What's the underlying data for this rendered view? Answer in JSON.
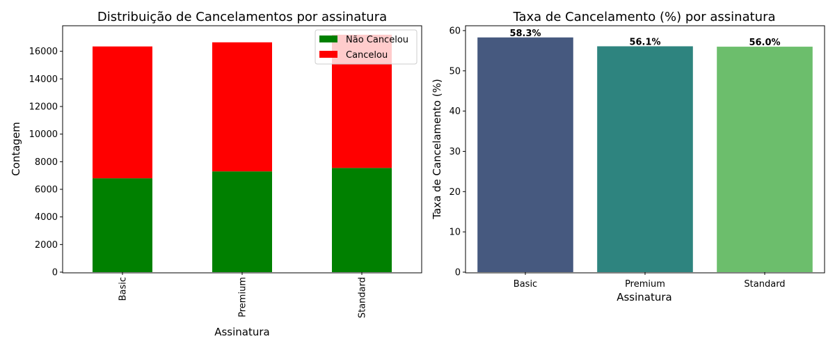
{
  "chart_data": [
    {
      "type": "bar",
      "stacked": true,
      "title": "Distribuição de Cancelamentos por assinatura",
      "xlabel": "Assinatura",
      "ylabel": "Contagem",
      "categories": [
        "Basic",
        "Premium",
        "Standard"
      ],
      "x_tick_rotation": "vertical",
      "yticks": [
        0,
        2000,
        4000,
        6000,
        8000,
        10000,
        12000,
        14000,
        16000
      ],
      "ylim": [
        0,
        17850
      ],
      "series": [
        {
          "name": "Não Cancelou",
          "values": [
            6800,
            7300,
            7550
          ],
          "color": "#008000"
        },
        {
          "name": "Cancelou",
          "values": [
            9550,
            9350,
            9650
          ],
          "color": "#ff0000"
        }
      ],
      "legend_position": "top-right",
      "grid": false
    },
    {
      "type": "bar",
      "title": "Taxa de Cancelamento (%) por assinatura",
      "xlabel": "Assinatura",
      "ylabel": "Taxa de Cancelamento (%)",
      "categories": [
        "Basic",
        "Premium",
        "Standard"
      ],
      "values": [
        58.3,
        56.1,
        56.0
      ],
      "data_labels": [
        "58.3%",
        "56.1%",
        "56.0%"
      ],
      "colors": [
        "#46597f",
        "#2e847f",
        "#6cbe6c"
      ],
      "yticks": [
        0,
        10,
        20,
        30,
        40,
        50,
        60
      ],
      "ylim": [
        0,
        61.2
      ],
      "grid": false
    }
  ]
}
